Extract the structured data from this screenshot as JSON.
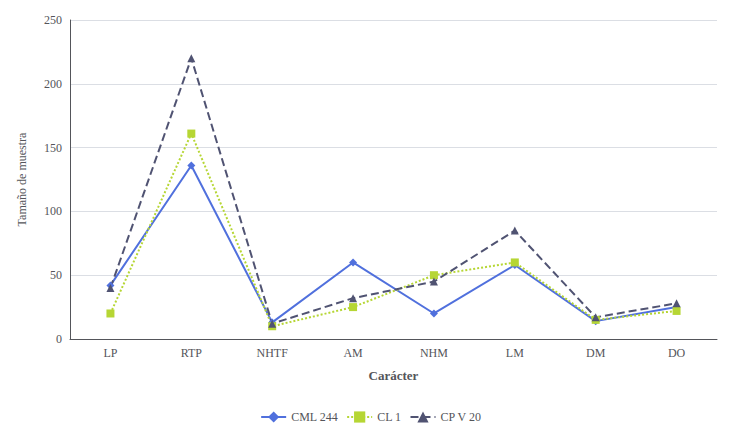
{
  "chart_data": {
    "type": "line",
    "categories": [
      "LP",
      "RTP",
      "NHTF",
      "AM",
      "NHM",
      "LM",
      "DM",
      "DO"
    ],
    "series": [
      {
        "name": "CML 244",
        "values": [
          42,
          136,
          13,
          60,
          20,
          58,
          14,
          25
        ],
        "marker": "diamond",
        "line_style": "solid"
      },
      {
        "name": "CL 1",
        "values": [
          20,
          161,
          10,
          25,
          50,
          60,
          15,
          22
        ],
        "marker": "square",
        "line_style": "dotted"
      },
      {
        "name": "CP V 20",
        "values": [
          40,
          220,
          12,
          32,
          45,
          85,
          17,
          28
        ],
        "marker": "triangle",
        "line_style": "dashed"
      }
    ],
    "xlabel": "Carácter",
    "ylabel": "Tamaño de muestra",
    "ylim": [
      0,
      250
    ],
    "yticks": [
      0,
      50,
      100,
      150,
      200,
      250
    ],
    "grid": true,
    "legend": "bottom"
  }
}
